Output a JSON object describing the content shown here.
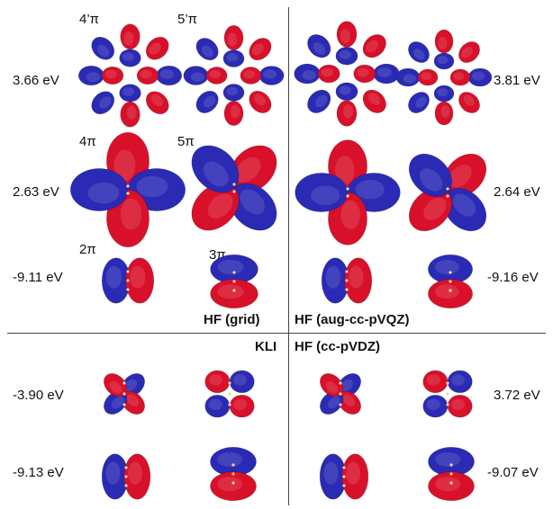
{
  "panels": {
    "top_left_method": "HF (grid)",
    "top_right_method": "HF (aug-cc-pVQZ)",
    "bottom_left_method": "KLI",
    "bottom_right_method": "HF (cc-pVDZ)"
  },
  "orbital_labels": {
    "l4p": "4’π",
    "l5p": "5’π",
    "l4": "4π",
    "l5": "5π",
    "l2": "2π",
    "l3": "3π"
  },
  "energies": {
    "hf_grid_row1": "3.66 eV",
    "hf_grid_row2": "2.63 eV",
    "hf_grid_row3": "-9.11 eV",
    "hf_aug_row1": "3.81 eV",
    "hf_aug_row2": "2.64 eV",
    "hf_aug_row3": "-9.16 eV",
    "kli_row1": "-3.90 eV",
    "kli_row2": "-9.13 eV",
    "ccpvdz_row1": "3.72 eV",
    "ccpvdz_row2": "-9.07 eV"
  },
  "colors": {
    "positive_lobe": "#d8102a",
    "negative_lobe": "#2a2ab4",
    "divider": "#444444"
  }
}
